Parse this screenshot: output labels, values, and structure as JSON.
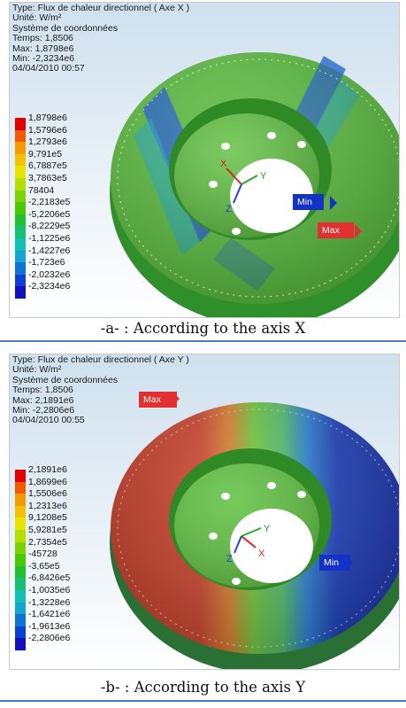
{
  "figure_a": {
    "info": [
      "Type: Flux de chaleur directionnel ( Axe X )",
      "Unité: W/m²",
      "Système de coordonnées",
      "Temps: 1,8506",
      "Max: 1,8798e6",
      "Min: -2,3234e6",
      "04/04/2010 00:57"
    ],
    "legend": [
      "1,8798e6",
      "1,5796e6",
      "1,2793e6",
      "9,791e5",
      "6,7887e5",
      "3,7863e5",
      "78404",
      "-2,2183e5",
      "-5,2206e5",
      "-8,2229e5",
      "-1,1225e6",
      "-1,4227e6",
      "-1,723e6",
      "-2,0232e6",
      "-2,3234e6"
    ],
    "max_label": "Max",
    "min_label": "Min",
    "axis_x": "X",
    "axis_y": "Y",
    "axis_z": "Z",
    "caption": "-a- : According to the axis X"
  },
  "figure_b": {
    "info": [
      "Type: Flux de chaleur directionnel ( Axe Y )",
      "Unité: W/m²",
      "Système de coordonnées",
      "Temps: 1,8506",
      "Max: 2,1891e6",
      "Min: -2,2806e6",
      "04/04/2010 00:55"
    ],
    "legend": [
      "2,1891e6",
      "1,8699e6",
      "1,5506e6",
      "1,2313e6",
      "9,1208e5",
      "5,9281e5",
      "2,7354e5",
      "-45728",
      "-3,65e5",
      "-6,8426e5",
      "-1,0035e6",
      "-1,3228e6",
      "-1,6421e6",
      "-1,9613e6",
      "-2,2806e6"
    ],
    "max_label": "Max",
    "min_label": "Min",
    "axis_x": "X",
    "axis_y": "Y",
    "axis_z": "Z",
    "caption": "-b- : According to the axis Y"
  },
  "legend_colors": [
    "#e00000",
    "#f05a00",
    "#f39a00",
    "#f2c200",
    "#e9e300",
    "#b3e000",
    "#7dd300",
    "#4ac800",
    "#20c02f",
    "#15c170",
    "#12c0b2",
    "#12a5d4",
    "#0f72d6",
    "#0c3fd4",
    "#1010c0"
  ],
  "colors": {
    "disc_green": "#4fb52d",
    "disc_red": "#c0392b",
    "disc_blue": "#1f3fb8",
    "separator": "#4a79c4"
  }
}
